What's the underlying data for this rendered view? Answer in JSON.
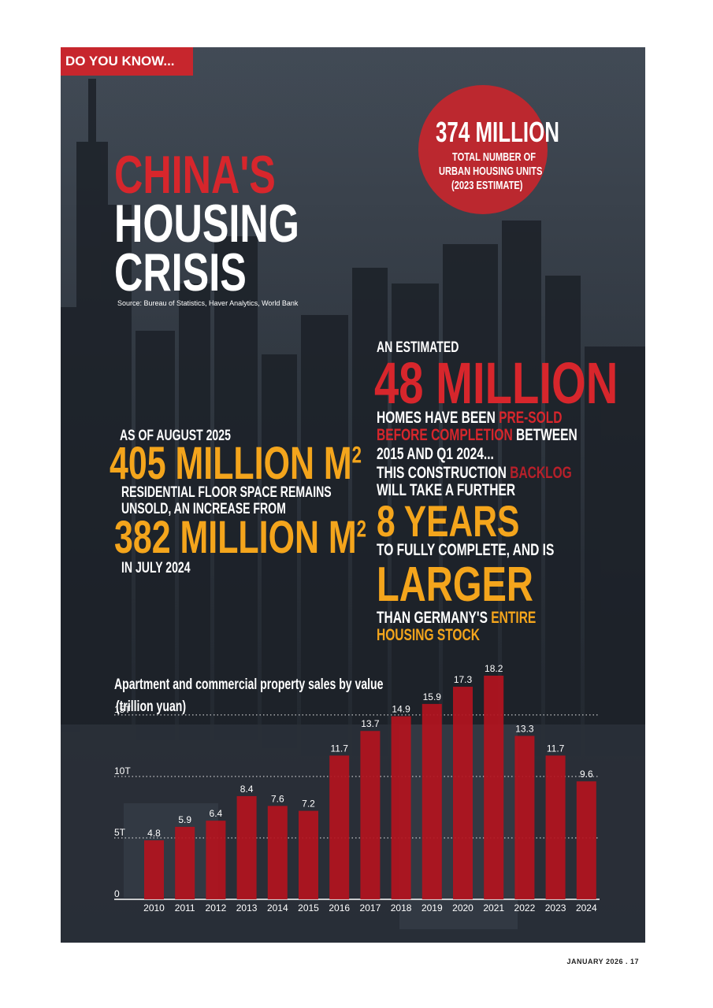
{
  "tag": "DO YOU KNOW...",
  "title": {
    "line1": "CHINA'S",
    "line2": "HOUSING",
    "line3": "CRISIS"
  },
  "source": "Source: Bureau of Statistics, Haver Analytics, World Bank",
  "circle": {
    "big": "374 MILLION",
    "line1": "TOTAL NUMBER OF",
    "line2": "URBAN HOUSING UNITS",
    "line3": "(2023 ESTIMATE)"
  },
  "floor": {
    "intro": "AS OF AUGUST 2025",
    "big1": "405 MILLION M",
    "sup": "2",
    "line1": "RESIDENTIAL FLOOR SPACE REMAINS",
    "line2": "UNSOLD, AN INCREASE FROM",
    "big2": "382 MILLION M",
    "outro": "IN JULY 2024"
  },
  "presold": {
    "intro": "AN ESTIMATED",
    "big": "48 MILLION",
    "l1a": "HOMES HAVE BEEN ",
    "l1b": "PRE-SOLD",
    "l2a": "BEFORE COMPLETION",
    "l2b": " BETWEEN",
    "l3": "2015 AND Q1 2024...",
    "l4a": "THIS CONSTRUCTION ",
    "l4b": "BACKLOG",
    "l5": "WILL TAKE A FURTHER",
    "years": "8 YEARS",
    "l6": "TO FULLY COMPLETE, AND IS",
    "larger": "LARGER",
    "l7a": "THAN GERMANY'S ",
    "l7b": "ENTIRE",
    "l8": "HOUSING STOCK"
  },
  "footer": "JANUARY 2026 . 17",
  "colors": {
    "red": "#c7262d",
    "orange": "#f4a51c",
    "white": "#ffffff",
    "bar": "#b3141e"
  },
  "chart_data": {
    "type": "bar",
    "title": "Apartment and commercial property sales by value",
    "subtitle": "(trillion yuan)",
    "categories": [
      "2010",
      "2011",
      "2012",
      "2013",
      "2014",
      "2015",
      "2016",
      "2017",
      "2018",
      "2019",
      "2020",
      "2021",
      "2022",
      "2023",
      "2024"
    ],
    "values": [
      4.8,
      5.9,
      6.4,
      8.4,
      7.6,
      7.2,
      11.7,
      13.7,
      14.9,
      15.9,
      17.3,
      18.2,
      13.3,
      11.7,
      9.6
    ],
    "y_ticks": [
      {
        "value": 0,
        "label": "0"
      },
      {
        "value": 5,
        "label": "5T"
      },
      {
        "value": 10,
        "label": "10T"
      },
      {
        "value": 15,
        "label": "15T"
      }
    ],
    "ylim": [
      0,
      18.2
    ],
    "grid": "dotted horizontal",
    "legend": "none"
  }
}
